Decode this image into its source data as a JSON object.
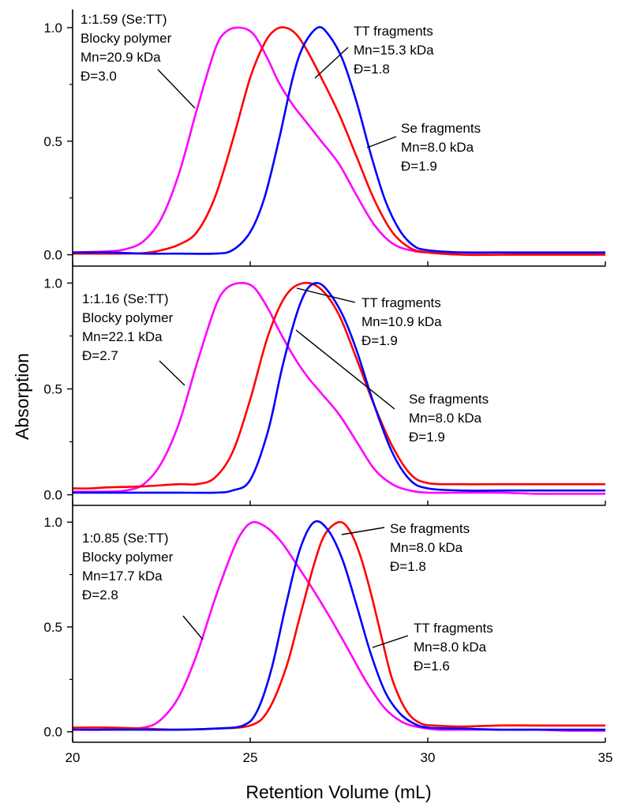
{
  "figure": {
    "xlabel": "Retention Volume (mL)",
    "ylabel": "Absorption"
  },
  "chart_data": [
    {
      "type": "line",
      "xlim": [
        20,
        35
      ],
      "ylim": [
        -0.05,
        1.08
      ],
      "xticks": [
        20,
        25,
        30,
        35
      ],
      "yticks": [
        0.0,
        0.5,
        1.0
      ],
      "annotations": [
        {
          "lines": [
            "1:1.59 (Se:TT)",
            "Blocky polymer",
            "Mn=20.9 kDa",
            "Đ=3.0"
          ]
        },
        {
          "lines": [
            "TT fragments",
            "Mn=15.3 kDa",
            "Đ=1.8"
          ]
        },
        {
          "lines": [
            "Se fragments",
            "Mn=8.0 kDa",
            "Đ=1.9"
          ]
        }
      ],
      "series": [
        {
          "color": "#ff00ff",
          "x": [
            20,
            21,
            21.5,
            22,
            22.5,
            23,
            23.5,
            24,
            24.3,
            24.7,
            25.1,
            25.5,
            25.8,
            26.2,
            26.6,
            27,
            27.5,
            28,
            28.5,
            29,
            29.5,
            30,
            31,
            32,
            33,
            34,
            35
          ],
          "y": [
            0.01,
            0.015,
            0.025,
            0.06,
            0.16,
            0.36,
            0.64,
            0.9,
            0.98,
            1.0,
            0.97,
            0.86,
            0.76,
            0.66,
            0.58,
            0.5,
            0.4,
            0.26,
            0.13,
            0.05,
            0.02,
            0.01,
            0.01,
            0.01,
            0.005,
            0.005,
            0.005
          ]
        },
        {
          "color": "#ff0000",
          "x": [
            20,
            21,
            22,
            22.5,
            23,
            23.5,
            24,
            24.5,
            25,
            25.4,
            25.7,
            26,
            26.3,
            26.6,
            27,
            27.5,
            28,
            28.5,
            29,
            29.5,
            30,
            31,
            32,
            33,
            34,
            35
          ],
          "y": [
            0.005,
            0.005,
            0.007,
            0.02,
            0.045,
            0.1,
            0.25,
            0.5,
            0.78,
            0.93,
            0.99,
            1.0,
            0.97,
            0.9,
            0.78,
            0.62,
            0.43,
            0.24,
            0.1,
            0.03,
            0.01,
            0.0,
            0.0,
            0.0,
            0.0,
            0.0
          ]
        },
        {
          "color": "#0000ff",
          "x": [
            20,
            21,
            22,
            23,
            24,
            24.5,
            25,
            25.4,
            25.8,
            26.2,
            26.5,
            26.9,
            27.2,
            27.6,
            28,
            28.4,
            28.8,
            29.2,
            29.6,
            30,
            31,
            32,
            33,
            34,
            35
          ],
          "y": [
            0.01,
            0.01,
            0.005,
            0.005,
            0.005,
            0.02,
            0.1,
            0.25,
            0.5,
            0.78,
            0.92,
            1.0,
            0.97,
            0.86,
            0.67,
            0.44,
            0.24,
            0.11,
            0.04,
            0.02,
            0.01,
            0.01,
            0.01,
            0.01,
            0.01
          ]
        }
      ]
    },
    {
      "type": "line",
      "xlim": [
        20,
        35
      ],
      "ylim": [
        -0.05,
        1.08
      ],
      "xticks": [
        20,
        25,
        30,
        35
      ],
      "yticks": [
        0.0,
        0.5,
        1.0
      ],
      "annotations": [
        {
          "lines": [
            "1:1.16 (Se:TT)",
            "Blocky polymer",
            "Mn=22.1 kDa",
            "Đ=2.7"
          ]
        },
        {
          "lines": [
            "TT fragments",
            "Mn=10.9 kDa",
            "Đ=1.9"
          ]
        },
        {
          "lines": [
            "Se fragments",
            "Mn=8.0 kDa",
            "Đ=1.9"
          ]
        }
      ],
      "series": [
        {
          "color": "#ff00ff",
          "x": [
            20,
            21,
            21.5,
            22,
            22.5,
            23,
            23.5,
            24,
            24.3,
            24.7,
            25.1,
            25.5,
            25.8,
            26.2,
            26.6,
            27,
            27.5,
            28,
            28.5,
            29,
            29.5,
            30,
            31,
            32,
            33,
            34,
            35
          ],
          "y": [
            0.015,
            0.015,
            0.02,
            0.05,
            0.15,
            0.34,
            0.62,
            0.88,
            0.97,
            1.0,
            0.98,
            0.88,
            0.78,
            0.66,
            0.56,
            0.48,
            0.38,
            0.25,
            0.12,
            0.05,
            0.02,
            0.01,
            0.01,
            0.01,
            0.005,
            0.005,
            0.005
          ]
        },
        {
          "color": "#ff0000",
          "x": [
            20,
            20.5,
            21,
            22,
            23,
            23.5,
            24,
            24.5,
            25,
            25.5,
            26,
            26.5,
            27,
            27.5,
            28,
            28.5,
            29,
            29.5,
            30,
            31,
            32,
            33,
            34,
            35
          ],
          "y": [
            0.03,
            0.03,
            0.035,
            0.04,
            0.05,
            0.05,
            0.08,
            0.2,
            0.45,
            0.75,
            0.94,
            1.0,
            0.97,
            0.85,
            0.64,
            0.42,
            0.23,
            0.1,
            0.055,
            0.05,
            0.05,
            0.05,
            0.05,
            0.05
          ]
        },
        {
          "color": "#0000ff",
          "x": [
            20,
            21,
            22,
            23,
            24,
            24.5,
            25,
            25.5,
            25.9,
            26.3,
            26.6,
            26.9,
            27.2,
            27.6,
            28,
            28.5,
            29,
            29.5,
            30,
            31,
            32,
            33,
            34,
            35
          ],
          "y": [
            0.01,
            0.01,
            0.01,
            0.01,
            0.01,
            0.02,
            0.07,
            0.3,
            0.6,
            0.85,
            0.97,
            1.0,
            0.96,
            0.85,
            0.68,
            0.42,
            0.2,
            0.07,
            0.03,
            0.02,
            0.02,
            0.02,
            0.02,
            0.02
          ]
        }
      ]
    },
    {
      "type": "line",
      "xlim": [
        20,
        35
      ],
      "ylim": [
        -0.05,
        1.08
      ],
      "xticks": [
        20,
        25,
        30,
        35
      ],
      "yticks": [
        0.0,
        0.5,
        1.0
      ],
      "annotations": [
        {
          "lines": [
            "1:0.85 (Se:TT)",
            "Blocky polymer",
            "Mn=17.7 kDa",
            "Đ=2.8"
          ]
        },
        {
          "lines": [
            "Se fragments",
            "Mn=8.0 kDa",
            "Đ=1.8"
          ]
        },
        {
          "lines": [
            "TT fragments",
            "Mn=8.0 kDa",
            "Đ=1.6"
          ]
        }
      ],
      "series": [
        {
          "color": "#ff00ff",
          "x": [
            20,
            21,
            22,
            22.5,
            23,
            23.5,
            24,
            24.5,
            24.8,
            25.1,
            25.5,
            25.9,
            26.3,
            26.8,
            27.3,
            27.8,
            28.3,
            28.8,
            29.3,
            29.8,
            30.3,
            31,
            32,
            33,
            34,
            35
          ],
          "y": [
            0.01,
            0.01,
            0.02,
            0.06,
            0.17,
            0.37,
            0.63,
            0.86,
            0.96,
            1.0,
            0.97,
            0.9,
            0.8,
            0.67,
            0.53,
            0.38,
            0.23,
            0.11,
            0.045,
            0.02,
            0.01,
            0.01,
            0.01,
            0.01,
            0.005,
            0.005
          ]
        },
        {
          "color": "#ff0000",
          "x": [
            20,
            21,
            22,
            23,
            24,
            25,
            25.5,
            26,
            26.4,
            26.8,
            27.1,
            27.5,
            27.8,
            28.1,
            28.4,
            28.7,
            29,
            29.4,
            29.8,
            30.2,
            31,
            32,
            33,
            34,
            35
          ],
          "y": [
            0.02,
            0.02,
            0.015,
            0.01,
            0.015,
            0.03,
            0.1,
            0.3,
            0.55,
            0.8,
            0.94,
            1.0,
            0.96,
            0.84,
            0.66,
            0.45,
            0.25,
            0.1,
            0.04,
            0.03,
            0.025,
            0.03,
            0.03,
            0.03,
            0.03
          ]
        },
        {
          "color": "#0000ff",
          "x": [
            20,
            21,
            22,
            23,
            24,
            24.8,
            25.2,
            25.6,
            26,
            26.4,
            26.8,
            27.2,
            27.6,
            28,
            28.4,
            28.8,
            29.2,
            29.6,
            30,
            31,
            32,
            33,
            34,
            35
          ],
          "y": [
            0.01,
            0.01,
            0.01,
            0.01,
            0.015,
            0.03,
            0.1,
            0.3,
            0.6,
            0.87,
            1.0,
            0.96,
            0.82,
            0.6,
            0.37,
            0.19,
            0.09,
            0.04,
            0.02,
            0.015,
            0.01,
            0.01,
            0.01,
            0.01
          ]
        }
      ]
    }
  ]
}
